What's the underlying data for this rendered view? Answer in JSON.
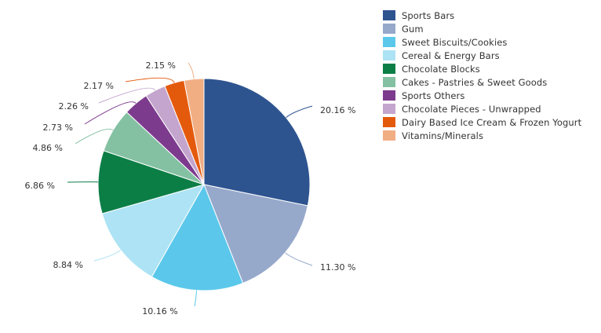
{
  "chart_data": {
    "type": "pie",
    "title": "",
    "legend_position": "top-right",
    "slices": [
      {
        "name": "Sports Bars",
        "value": 20.16,
        "label": "20.16 %",
        "color": "#2e5490"
      },
      {
        "name": "Gum",
        "value": 11.3,
        "label": "11.30 %",
        "color": "#97a9cb"
      },
      {
        "name": "Sweet Biscuits/Cookies",
        "value": 10.16,
        "label": "10.16 %",
        "color": "#5bc8eb"
      },
      {
        "name": "Cereal & Energy Bars",
        "value": 8.84,
        "label": "8.84 %",
        "color": "#ade3f4"
      },
      {
        "name": "Chocolate Blocks",
        "value": 6.86,
        "label": "6.86 %",
        "color": "#0b7e46"
      },
      {
        "name": "Cakes - Pastries & Sweet Goods",
        "value": 4.86,
        "label": "4.86 %",
        "color": "#84c1a2"
      },
      {
        "name": "Sports Others",
        "value": 2.73,
        "label": "2.73 %",
        "color": "#7d3b8e"
      },
      {
        "name": "Chocolate Pieces - Unwrapped",
        "value": 2.26,
        "label": "2.26 %",
        "color": "#c4a5cd"
      },
      {
        "name": "Dairy Based Ice Cream & Frozen Yogurt",
        "value": 2.17,
        "label": "2.17 %",
        "color": "#e45a0d"
      },
      {
        "name": "Vitamins/Minerals",
        "value": 2.15,
        "label": "2.15 %",
        "color": "#f1ae83"
      }
    ]
  }
}
